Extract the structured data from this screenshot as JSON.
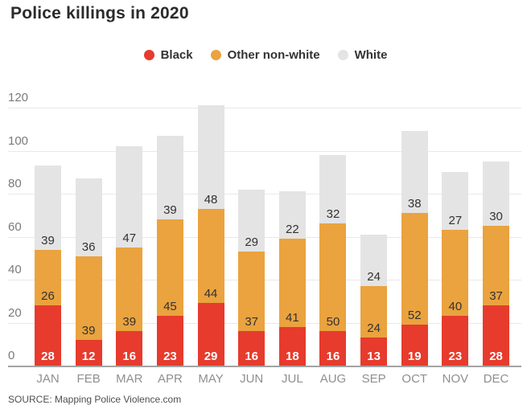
{
  "title": "Police killings in 2020",
  "source": "SOURCE: Mapping Police Violence.com",
  "legend": [
    {
      "label": "Black",
      "color": "#e63b2d"
    },
    {
      "label": "Other non-white",
      "color": "#eaa33e"
    },
    {
      "label": "White",
      "color": "#e4e4e4"
    }
  ],
  "colors": {
    "axis_line": "#a3a3a3",
    "gridline": "#e9e9e9",
    "tick_label": "#7a7a7a",
    "month_label": "#8f8f8f",
    "title": "#2b2b2b",
    "source": "#4f4f4f"
  },
  "chart_data": {
    "type": "bar",
    "stacked": true,
    "title": "Police killings in 2020",
    "xlabel": "",
    "ylabel": "",
    "categories": [
      "JAN",
      "FEB",
      "MAR",
      "APR",
      "MAY",
      "JUN",
      "JUL",
      "AUG",
      "SEP",
      "OCT",
      "NOV",
      "DEC"
    ],
    "series": [
      {
        "name": "Black",
        "color": "#e63b2d",
        "values": [
          28,
          12,
          16,
          23,
          29,
          16,
          18,
          16,
          13,
          19,
          23,
          28
        ]
      },
      {
        "name": "Other non-white",
        "color": "#eaa33e",
        "values": [
          26,
          39,
          39,
          45,
          44,
          37,
          41,
          50,
          24,
          52,
          40,
          37
        ]
      },
      {
        "name": "White",
        "color": "#e4e4e4",
        "values": [
          39,
          36,
          47,
          39,
          48,
          29,
          22,
          32,
          24,
          38,
          27,
          30
        ]
      }
    ],
    "totals": [
      93,
      87,
      102,
      107,
      121,
      82,
      81,
      98,
      61,
      109,
      90,
      95
    ],
    "ylim": [
      0,
      120
    ],
    "yticks": [
      0,
      20,
      40,
      60,
      80,
      100,
      120
    ],
    "grid": true,
    "legend_position": "top"
  }
}
